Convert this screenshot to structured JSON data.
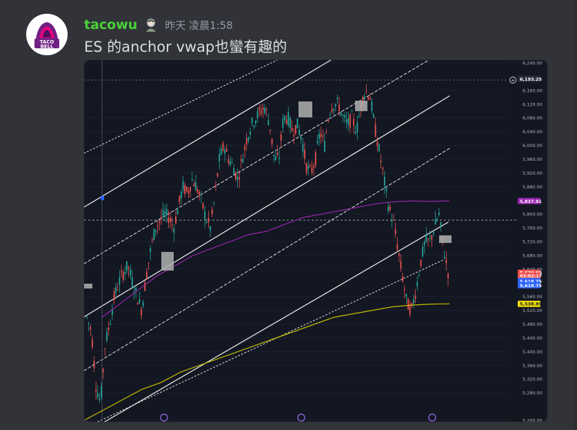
{
  "message": {
    "username": "tacowu",
    "timestamp": "昨天 凌晨1:58",
    "text": "ES 的anchor vwap也蠻有趣的",
    "avatar": {
      "line1": "TACO",
      "line2": "BELL"
    }
  },
  "colors": {
    "background": "#313338",
    "username": "#4ad13a",
    "chart_bg": "#131722",
    "up_candle": "#26a69a",
    "down_candle": "#ef5350",
    "vwap_purple": "#9c27b0",
    "vwap_yellow": "#c8c000"
  },
  "chart_data": {
    "type": "line",
    "ylim": [
      5200,
      6240
    ],
    "y_ticks": [
      "6,240.00",
      "6,160.00",
      "6,120.00",
      "6,080.00",
      "6,040.00",
      "6,000.00",
      "5,960.00",
      "5,920.00",
      "5,880.00",
      "5,800.00",
      "5,760.00",
      "5,720.00",
      "5,680.00",
      "5,640.00",
      "5,560.00",
      "5,520.00",
      "5,480.00",
      "5,440.00",
      "5,400.00",
      "5,360.00",
      "5,320.00",
      "5,280.00",
      "5,200.00"
    ],
    "price_labels": [
      {
        "text": "6,193.25",
        "kind": "crosshair"
      },
      {
        "text": "5,837.91",
        "kind": "vwap_purple"
      },
      {
        "text": "5,629.50",
        "kind": "last_price"
      },
      {
        "text": "03:02:17",
        "kind": "countdown"
      },
      {
        "text": "5,618.75",
        "kind": "bid"
      },
      {
        "text": "5,618.75",
        "kind": "ask"
      },
      {
        "text": "5,538.89",
        "kind": "vwap_yellow"
      }
    ],
    "price_series": [
      5500,
      5460,
      5300,
      5250,
      5420,
      5480,
      5560,
      5600,
      5630,
      5650,
      5600,
      5560,
      5520,
      5620,
      5700,
      5760,
      5780,
      5800,
      5790,
      5760,
      5820,
      5880,
      5860,
      5900,
      5880,
      5840,
      5790,
      5760,
      5850,
      5960,
      6000,
      5960,
      5940,
      5900,
      5960,
      6020,
      6060,
      6080,
      6100,
      6110,
      6060,
      5960,
      5960,
      6080,
      6080,
      6040,
      6060,
      6020,
      5940,
      5920,
      5960,
      6040,
      6000,
      6100,
      6120,
      6120,
      6080,
      6060,
      6080,
      6040,
      6120,
      6160,
      6140,
      6050,
      5980,
      5900,
      5820,
      5780,
      5700,
      5620,
      5540,
      5520,
      5580,
      5660,
      5720,
      5720,
      5760,
      5800,
      5700,
      5630
    ],
    "vwap_purple": [
      5500,
      5540,
      5580,
      5620,
      5650,
      5680,
      5700,
      5720,
      5740,
      5750,
      5770,
      5790,
      5800,
      5810,
      5820,
      5830,
      5836,
      5838,
      5837,
      5838
    ],
    "vwap_yellow": [
      5200,
      5230,
      5260,
      5290,
      5310,
      5340,
      5360,
      5380,
      5400,
      5420,
      5440,
      5460,
      5480,
      5500,
      5510,
      5520,
      5530,
      5535,
      5538,
      5539
    ]
  }
}
